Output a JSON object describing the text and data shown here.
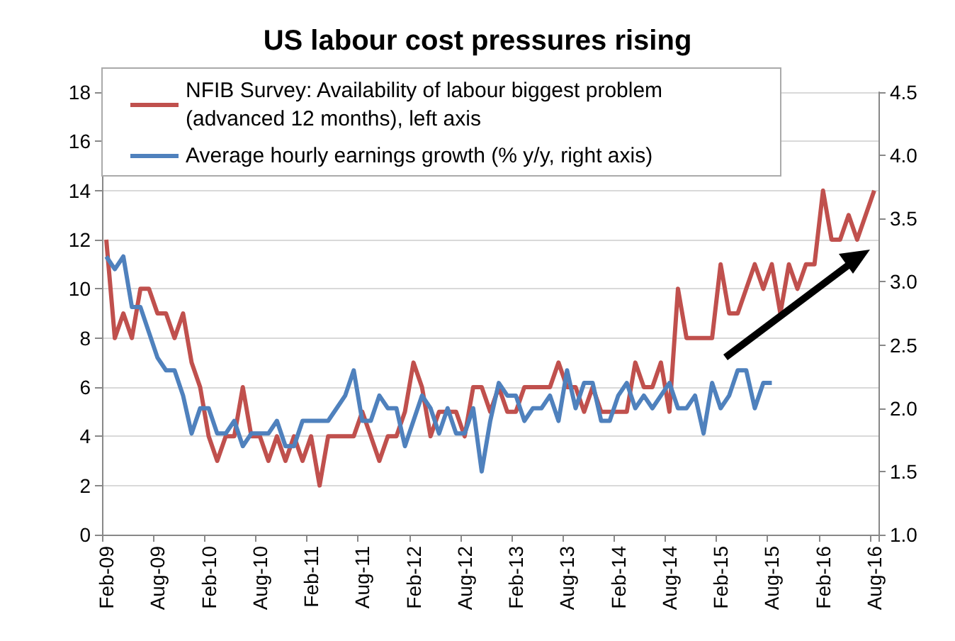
{
  "chart_data": {
    "type": "line",
    "title": "US labour cost pressures rising",
    "categories": [
      "Feb-09",
      null,
      null,
      null,
      null,
      null,
      "Aug-09",
      null,
      null,
      null,
      null,
      null,
      "Feb-10",
      null,
      null,
      null,
      null,
      null,
      "Aug-10",
      null,
      null,
      null,
      null,
      null,
      "Feb-11",
      null,
      null,
      null,
      null,
      null,
      "Aug-11",
      null,
      null,
      null,
      null,
      null,
      "Feb-12",
      null,
      null,
      null,
      null,
      null,
      "Aug-12",
      null,
      null,
      null,
      null,
      null,
      "Feb-13",
      null,
      null,
      null,
      null,
      null,
      "Aug-13",
      null,
      null,
      null,
      null,
      null,
      "Feb-14",
      null,
      null,
      null,
      null,
      null,
      "Aug-14",
      null,
      null,
      null,
      null,
      null,
      "Feb-15",
      null,
      null,
      null,
      null,
      null,
      "Aug-15",
      null,
      null,
      null,
      null,
      null,
      "Feb-16",
      null,
      null,
      null,
      null,
      null,
      "Aug-16"
    ],
    "series": [
      {
        "name": "NFIB Survey: Availability of labour biggest problem (advanced 12 months), left axis",
        "color": "#c0504d",
        "values": [
          12,
          8,
          9,
          8,
          10,
          10,
          9,
          9,
          8,
          9,
          7,
          6,
          4,
          3,
          4,
          4,
          6,
          4,
          4,
          3,
          4,
          3,
          4,
          3,
          4,
          2,
          4,
          4,
          4,
          4,
          5,
          4,
          3,
          4,
          4,
          5,
          7,
          6,
          4,
          5,
          5,
          5,
          4,
          6,
          6,
          5,
          6,
          5,
          5,
          6,
          6,
          6,
          6,
          7,
          6,
          6,
          5,
          6,
          5,
          5,
          5,
          5,
          7,
          6,
          6,
          7,
          5,
          10,
          8,
          8,
          8,
          8,
          11,
          9,
          9,
          10,
          11,
          10,
          11,
          9,
          11,
          10,
          11,
          11,
          14,
          12,
          12,
          13,
          12,
          13,
          14
        ]
      },
      {
        "name": "Average hourly earnings growth (% y/y, right axis)",
        "color": "#4f81bd",
        "axis": "y2",
        "values": [
          3.2,
          3.1,
          3.2,
          2.8,
          2.8,
          2.6,
          2.4,
          2.3,
          2.3,
          2.1,
          1.8,
          2.0,
          2.0,
          1.8,
          1.8,
          1.9,
          1.7,
          1.8,
          1.8,
          1.8,
          1.9,
          1.7,
          1.7,
          1.9,
          1.9,
          1.9,
          1.9,
          2.0,
          2.1,
          2.3,
          1.9,
          1.9,
          2.1,
          2.0,
          2.0,
          1.7,
          1.9,
          2.1,
          2.0,
          1.8,
          2.0,
          1.8,
          1.8,
          2.0,
          1.5,
          1.9,
          2.2,
          2.1,
          2.1,
          1.9,
          2.0,
          2.0,
          2.1,
          1.9,
          2.3,
          2.0,
          2.2,
          2.2,
          1.9,
          1.9,
          2.1,
          2.2,
          2.0,
          2.1,
          2.0,
          2.1,
          2.2,
          2.0,
          2.0,
          2.1,
          1.8,
          2.2,
          2.0,
          2.1,
          2.3,
          2.3,
          2.0,
          2.2,
          2.2,
          null,
          null,
          null,
          null,
          null,
          null,
          null,
          null,
          null,
          null,
          null,
          null
        ]
      }
    ],
    "ylim": [
      0,
      18
    ],
    "yticks": [
      0,
      2,
      4,
      6,
      8,
      10,
      12,
      14,
      16,
      18
    ],
    "y2lim": [
      1.0,
      4.5
    ],
    "y2ticks": [
      {
        "value": 1.0,
        "label": "1.0"
      },
      1.5,
      {
        "value": 2.0,
        "label": "2.0"
      },
      2.5,
      {
        "value": 3.0,
        "label": "3.0"
      },
      3.5,
      {
        "value": 4.0,
        "label": "4.0"
      },
      4.5
    ],
    "grid": "y",
    "legend": "top left",
    "marker": "none",
    "line_style": "solid"
  }
}
